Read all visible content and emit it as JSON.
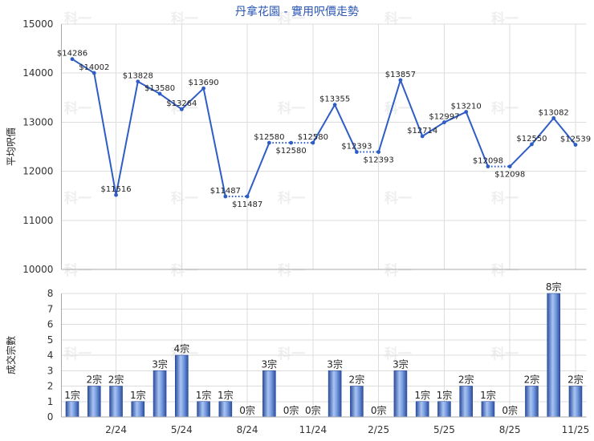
{
  "title": "丹拿花園 - 實用呎價走勢",
  "watermark": "科一",
  "colors": {
    "title": "#2a56b2",
    "line": "#2f5dc6",
    "bar_dark": "#2c4f9f",
    "bar_light": "#aac4f2",
    "bar_edge": "#2a4a98"
  },
  "chart_data": [
    {
      "type": "line",
      "ylabel": "平均呎價",
      "ylim": [
        10000,
        15000
      ],
      "yticks": [
        10000,
        11000,
        12000,
        13000,
        14000,
        15000
      ],
      "grid": true,
      "value_label_prefix": "$",
      "series": [
        {
          "values": [
            14286,
            14002,
            11516,
            13828,
            13580,
            13264,
            13690,
            11487,
            11487,
            12580,
            12580,
            12580,
            13355,
            12393,
            12393,
            13857,
            12714,
            12997,
            13210,
            12098,
            12098,
            12550,
            13082,
            12539
          ]
        }
      ]
    },
    {
      "type": "bar",
      "ylabel": "成交宗數",
      "ylim": [
        0,
        8
      ],
      "yticks": [
        0,
        1,
        2,
        3,
        4,
        5,
        6,
        7,
        8
      ],
      "grid": true,
      "categories": [
        "",
        "",
        "2/24",
        "",
        "",
        "5/24",
        "",
        "",
        "8/24",
        "",
        "",
        "11/24",
        "",
        "",
        "2/25",
        "",
        "",
        "5/25",
        "",
        "",
        "8/25",
        "",
        "",
        "11/25"
      ],
      "value_label_suffix": "宗",
      "series": [
        {
          "values": [
            1,
            2,
            2,
            1,
            3,
            4,
            1,
            1,
            0,
            3,
            0,
            0,
            3,
            2,
            0,
            3,
            1,
            1,
            2,
            1,
            0,
            2,
            8,
            2
          ]
        }
      ]
    }
  ]
}
